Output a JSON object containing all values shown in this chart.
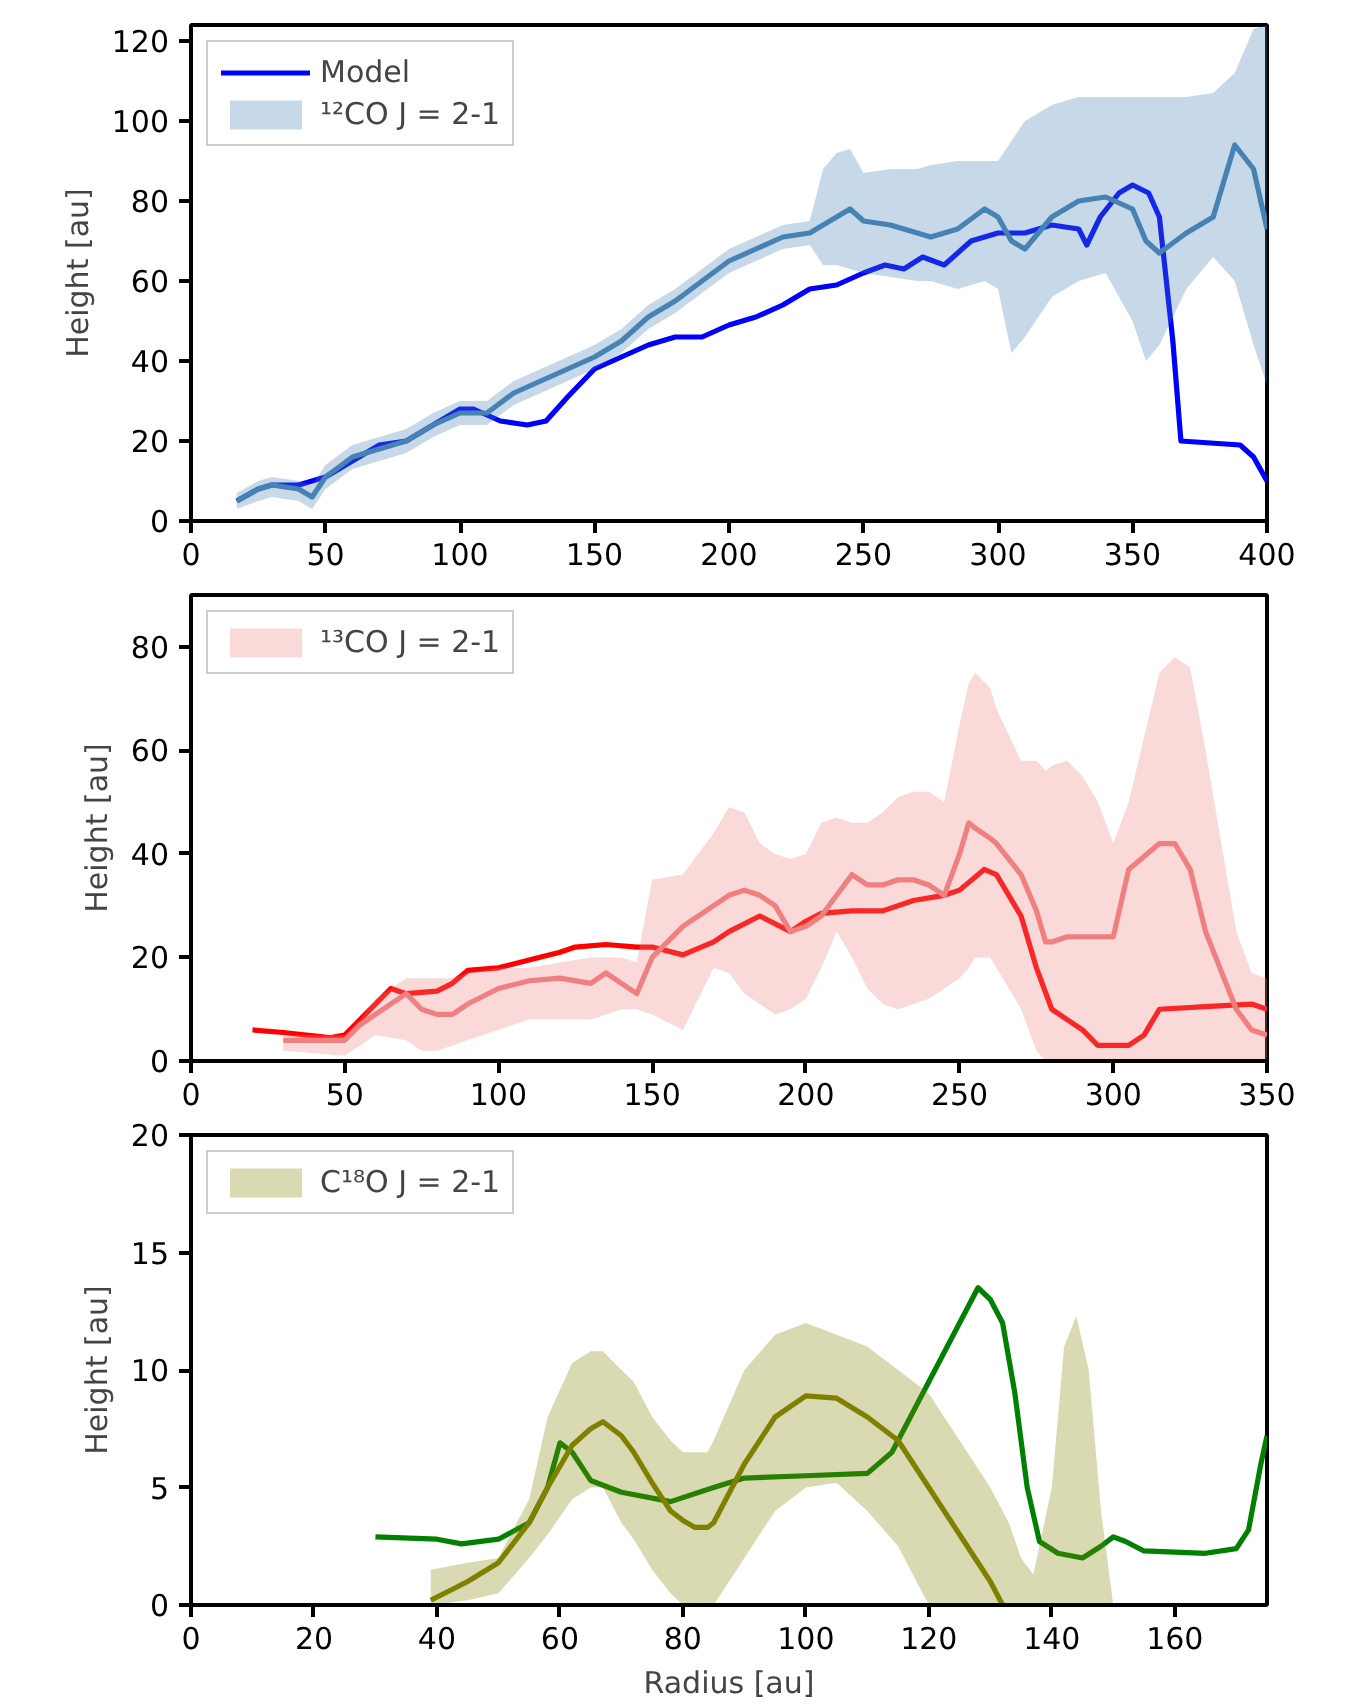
{
  "chart_data": [
    {
      "type": "line",
      "ylabel": "Height [au]",
      "xlim": [
        0,
        400
      ],
      "ylim": [
        0,
        124
      ],
      "xticks": [
        0,
        50,
        100,
        150,
        200,
        250,
        300,
        350,
        400
      ],
      "yticks": [
        0,
        20,
        40,
        60,
        80,
        100,
        120
      ],
      "grid": false,
      "legend": "top left",
      "series": [
        {
          "name": "Model",
          "color": "#0000ff",
          "x": [
            17,
            25,
            30,
            40,
            50,
            60,
            70,
            80,
            90,
            100,
            105,
            115,
            125,
            132,
            140,
            150,
            160,
            170,
            180,
            190,
            200,
            210,
            220,
            230,
            240,
            250,
            258,
            265,
            272,
            280,
            290,
            300,
            310,
            320,
            330,
            333,
            338,
            345,
            350,
            356,
            360,
            365,
            368,
            390,
            395,
            400
          ],
          "values": [
            5,
            8,
            9,
            9,
            11,
            15,
            19,
            20,
            24,
            28,
            28,
            25,
            24,
            25,
            31,
            38,
            41,
            44,
            46,
            46,
            49,
            51,
            54,
            58,
            59,
            62,
            64,
            63,
            66,
            64,
            70,
            72,
            72,
            74,
            73,
            69,
            76,
            82,
            84,
            82,
            76,
            45,
            20,
            19,
            16,
            10
          ]
        },
        {
          "name": "¹²CO J = 2-1",
          "color": "#4682b4",
          "x": [
            17,
            25,
            30,
            40,
            45,
            50,
            60,
            70,
            80,
            90,
            100,
            110,
            120,
            130,
            140,
            150,
            160,
            170,
            180,
            190,
            200,
            210,
            220,
            230,
            235,
            240,
            245,
            250,
            260,
            270,
            275,
            285,
            295,
            300,
            305,
            310,
            320,
            330,
            340,
            350,
            355,
            360,
            370,
            380,
            388,
            395,
            400
          ],
          "values": [
            5,
            8,
            9,
            8,
            6,
            11,
            16,
            18,
            20,
            24,
            27,
            27,
            32,
            35,
            38,
            41,
            45,
            51,
            55,
            60,
            65,
            68,
            71,
            72,
            74,
            76,
            78,
            75,
            74,
            72,
            71,
            73,
            78,
            76,
            70,
            68,
            76,
            80,
            81,
            78,
            70,
            67,
            72,
            76,
            94,
            88,
            73
          ],
          "lower": [
            3,
            5,
            6,
            5,
            3,
            8,
            13,
            15,
            17,
            21,
            24,
            24,
            29,
            32,
            35,
            38,
            42,
            48,
            52,
            57,
            62,
            65,
            68,
            69,
            64,
            64,
            63,
            62,
            61,
            60,
            60,
            58,
            60,
            58,
            42,
            46,
            56,
            60,
            62,
            50,
            40,
            44,
            58,
            66,
            60,
            44,
            34
          ],
          "upper": [
            7,
            10,
            11,
            10,
            9,
            14,
            19,
            21,
            23,
            27,
            30,
            30,
            35,
            38,
            41,
            44,
            48,
            54,
            58,
            63,
            68,
            71,
            74,
            75,
            88,
            92,
            93,
            87,
            88,
            88,
            89,
            90,
            90,
            90,
            95,
            100,
            104,
            106,
            106,
            106,
            106,
            106,
            106,
            107,
            112,
            123,
            124
          ]
        }
      ]
    },
    {
      "type": "line",
      "ylabel": "Height [au]",
      "xlim": [
        0,
        350
      ],
      "ylim": [
        0,
        90
      ],
      "xticks": [
        0,
        50,
        100,
        150,
        200,
        250,
        300,
        350
      ],
      "yticks": [
        0,
        20,
        40,
        60,
        80
      ],
      "grid": false,
      "legend": "top left",
      "series": [
        {
          "color": "#ff0000",
          "x": [
            20,
            30,
            45,
            50,
            55,
            65,
            70,
            80,
            85,
            90,
            100,
            110,
            120,
            125,
            135,
            145,
            150,
            160,
            170,
            175,
            185,
            195,
            200,
            205,
            215,
            225,
            235,
            245,
            250,
            258,
            262,
            270,
            275,
            280,
            285,
            290,
            295,
            305,
            310,
            315,
            330,
            345,
            350
          ],
          "values": [
            6,
            5.5,
            4.5,
            5,
            8,
            14,
            13,
            13.5,
            15,
            17.5,
            18,
            19.5,
            21,
            22,
            22.5,
            22,
            22,
            20.5,
            23,
            25,
            28,
            25,
            27,
            28.5,
            29,
            29,
            31,
            32,
            33,
            37,
            36,
            28,
            18,
            10,
            8,
            6,
            3,
            3,
            5,
            10,
            10.5,
            11,
            10
          ]
        },
        {
          "name": "¹³CO J = 2-1",
          "color": "#f08080",
          "x": [
            30,
            50,
            55,
            60,
            70,
            75,
            80,
            85,
            90,
            100,
            110,
            120,
            130,
            135,
            140,
            145,
            150,
            160,
            170,
            175,
            180,
            185,
            190,
            195,
            200,
            205,
            210,
            215,
            220,
            225,
            230,
            235,
            240,
            245,
            250,
            253,
            255,
            260,
            262,
            270,
            275,
            278,
            280,
            285,
            290,
            295,
            300,
            305,
            315,
            320,
            325,
            330,
            340,
            345,
            350
          ],
          "values": [
            4,
            4,
            7,
            9,
            13,
            10,
            9,
            9,
            11,
            14,
            15.5,
            16,
            15,
            17,
            15,
            13,
            20,
            26,
            30,
            32,
            33,
            32,
            30,
            25,
            26,
            28,
            32,
            36,
            34,
            34,
            35,
            35,
            34,
            32,
            40,
            46,
            45,
            43,
            42,
            36,
            29,
            23,
            23,
            24,
            24,
            24,
            24,
            37,
            42,
            42,
            37,
            25,
            10,
            6,
            5
          ],
          "lower": [
            2,
            1,
            3,
            5,
            4,
            2,
            2,
            3,
            4,
            6,
            8,
            8,
            8,
            9,
            10,
            10,
            9,
            6,
            18,
            17,
            13,
            11,
            9,
            10,
            12,
            18,
            25,
            20,
            14,
            11,
            10,
            11,
            12,
            14,
            16,
            18,
            20,
            20,
            18,
            10,
            2,
            0,
            0,
            0,
            0,
            0,
            0,
            0,
            0,
            0,
            0,
            0,
            0,
            0,
            0
          ],
          "upper": [
            5,
            5,
            8,
            12,
            16,
            16,
            16,
            16,
            17,
            18,
            18,
            19,
            20,
            20,
            20,
            19,
            35,
            36,
            44,
            49,
            48,
            42,
            40,
            39,
            40,
            46,
            47,
            46,
            46,
            48,
            51,
            52,
            52,
            50,
            65,
            73,
            75,
            72,
            68,
            58,
            58,
            56,
            57,
            58,
            55,
            50,
            42,
            50,
            75,
            78,
            76,
            60,
            25,
            17,
            16
          ]
        }
      ]
    },
    {
      "type": "line",
      "xlabel": "Radius [au]",
      "ylabel": "Height [au]",
      "xlim": [
        0,
        175
      ],
      "ylim": [
        0,
        20
      ],
      "xticks": [
        0,
        20,
        40,
        60,
        80,
        100,
        120,
        140,
        160
      ],
      "yticks": [
        0,
        5,
        10,
        15,
        20
      ],
      "grid": false,
      "legend": "top left",
      "series": [
        {
          "color": "#008000",
          "x": [
            30,
            40,
            44,
            50,
            55,
            58,
            60,
            62,
            65,
            70,
            78,
            85,
            90,
            100,
            110,
            114,
            118,
            122,
            126,
            128,
            130,
            132,
            134,
            136,
            138,
            141,
            145,
            148,
            150,
            152,
            155,
            165,
            170,
            172,
            174,
            175
          ],
          "values": [
            2.9,
            2.8,
            2.6,
            2.8,
            3.5,
            5,
            6.9,
            6.5,
            5.3,
            4.8,
            4.4,
            5,
            5.4,
            5.5,
            5.6,
            6.5,
            8.5,
            10.5,
            12.5,
            13.5,
            13,
            12,
            9,
            5,
            2.7,
            2.2,
            2,
            2.5,
            2.9,
            2.7,
            2.3,
            2.2,
            2.4,
            3.2,
            6,
            7.2
          ]
        },
        {
          "name": "C¹⁸O J = 2-1",
          "color": "#808000",
          "x": [
            39,
            45,
            50,
            55,
            58,
            62,
            65,
            67,
            70,
            72,
            75,
            78,
            80,
            82,
            84,
            85,
            90,
            95,
            100,
            105,
            110,
            115,
            120,
            125,
            130,
            132,
            133,
            135,
            137,
            140,
            142,
            144,
            146,
            148,
            150
          ],
          "values": [
            0.2,
            1,
            1.8,
            3.5,
            5,
            6.8,
            7.5,
            7.8,
            7.2,
            6.5,
            5.2,
            4,
            3.6,
            3.3,
            3.3,
            3.5,
            6,
            8,
            8.9,
            8.8,
            8,
            7,
            5,
            3,
            1,
            0,
            null,
            null,
            null,
            null,
            null,
            null,
            null,
            null,
            null
          ],
          "lower": [
            0,
            0.2,
            0.5,
            2,
            3,
            4.5,
            5,
            5,
            3.5,
            2.8,
            1.5,
            0.5,
            0,
            0,
            0,
            0,
            2,
            4,
            5,
            5.2,
            4,
            2.5,
            0,
            0,
            0,
            0,
            0,
            0,
            0,
            0,
            0,
            0,
            0,
            0,
            0
          ],
          "upper": [
            1.5,
            1.8,
            2,
            4.5,
            8,
            10.3,
            10.8,
            10.8,
            10,
            9.5,
            8,
            7,
            6.5,
            6.5,
            6.5,
            7,
            10,
            11.5,
            12,
            11.5,
            11,
            10,
            9,
            7,
            5,
            4,
            3.5,
            2,
            1.3,
            5,
            11,
            12.3,
            10,
            4,
            0
          ]
        }
      ]
    }
  ]
}
